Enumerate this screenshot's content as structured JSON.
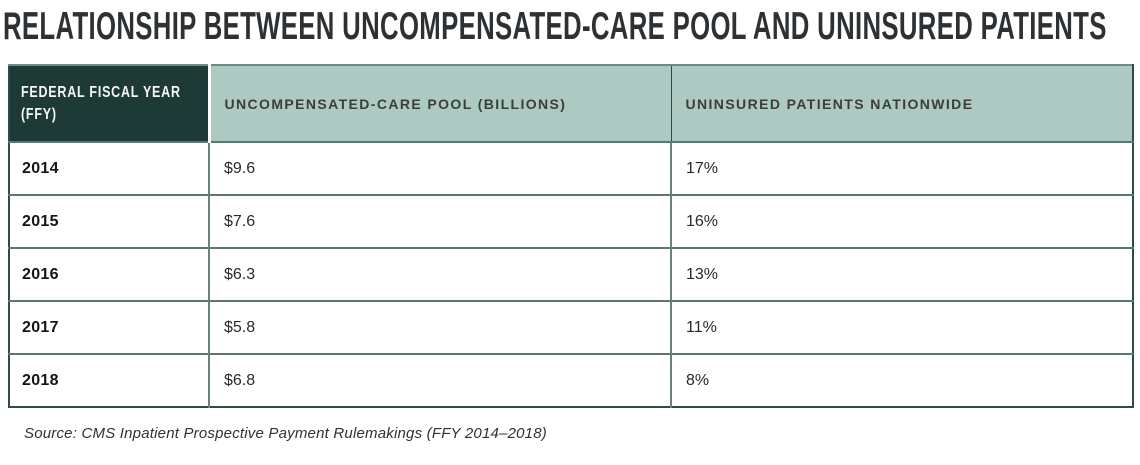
{
  "title": "RELATIONSHIP BETWEEN UNCOMPENSATED-CARE POOL AND UNINSURED PATIENTS",
  "table": {
    "headers": [
      "FEDERAL FISCAL YEAR (FFY)",
      "UNCOMPENSATED-CARE POOL (BILLIONS)",
      "UNINSURED PATIENTS NATIONWIDE"
    ],
    "rows": [
      {
        "year": "2014",
        "pool": "$9.6",
        "uninsured": "17%"
      },
      {
        "year": "2015",
        "pool": "$7.6",
        "uninsured": "16%"
      },
      {
        "year": "2016",
        "pool": "$6.3",
        "uninsured": "13%"
      },
      {
        "year": "2017",
        "pool": "$5.8",
        "uninsured": "11%"
      },
      {
        "year": "2018",
        "pool": "$6.8",
        "uninsured": "8%"
      }
    ]
  },
  "source": "Source: CMS Inpatient Prospective Payment Rulemakings (FFY 2014–2018)",
  "colors": {
    "header_dark_bg": "#1d3a36",
    "header_light_bg": "#adc9c2",
    "header_dark_text": "#ffffff",
    "header_light_text": "#393f3d",
    "title_text": "#2e3134",
    "body_text": "#262a29",
    "border_outer": "#2e4c47",
    "border_row": "#5c7773"
  },
  "chart_data": {
    "type": "table",
    "title": "RELATIONSHIP BETWEEN UNCOMPENSATED-CARE POOL AND UNINSURED PATIENTS",
    "columns": [
      "FEDERAL FISCAL YEAR (FFY)",
      "UNCOMPENSATED-CARE POOL (BILLIONS)",
      "UNINSURED PATIENTS NATIONWIDE"
    ],
    "rows": [
      [
        "2014",
        "$9.6",
        "17%"
      ],
      [
        "2015",
        "$7.6",
        "16%"
      ],
      [
        "2016",
        "$6.3",
        "13%"
      ],
      [
        "2017",
        "$5.8",
        "11%"
      ],
      [
        "2018",
        "$6.8",
        "8%"
      ]
    ],
    "years": [
      2014,
      2015,
      2016,
      2017,
      2018
    ],
    "uncompensated_care_pool_billions": [
      9.6,
      7.6,
      6.3,
      5.8,
      6.8
    ],
    "uninsured_patients_pct": [
      17,
      16,
      13,
      11,
      8
    ],
    "source": "Source: CMS Inpatient Prospective Payment Rulemakings (FFY 2014–2018)"
  }
}
